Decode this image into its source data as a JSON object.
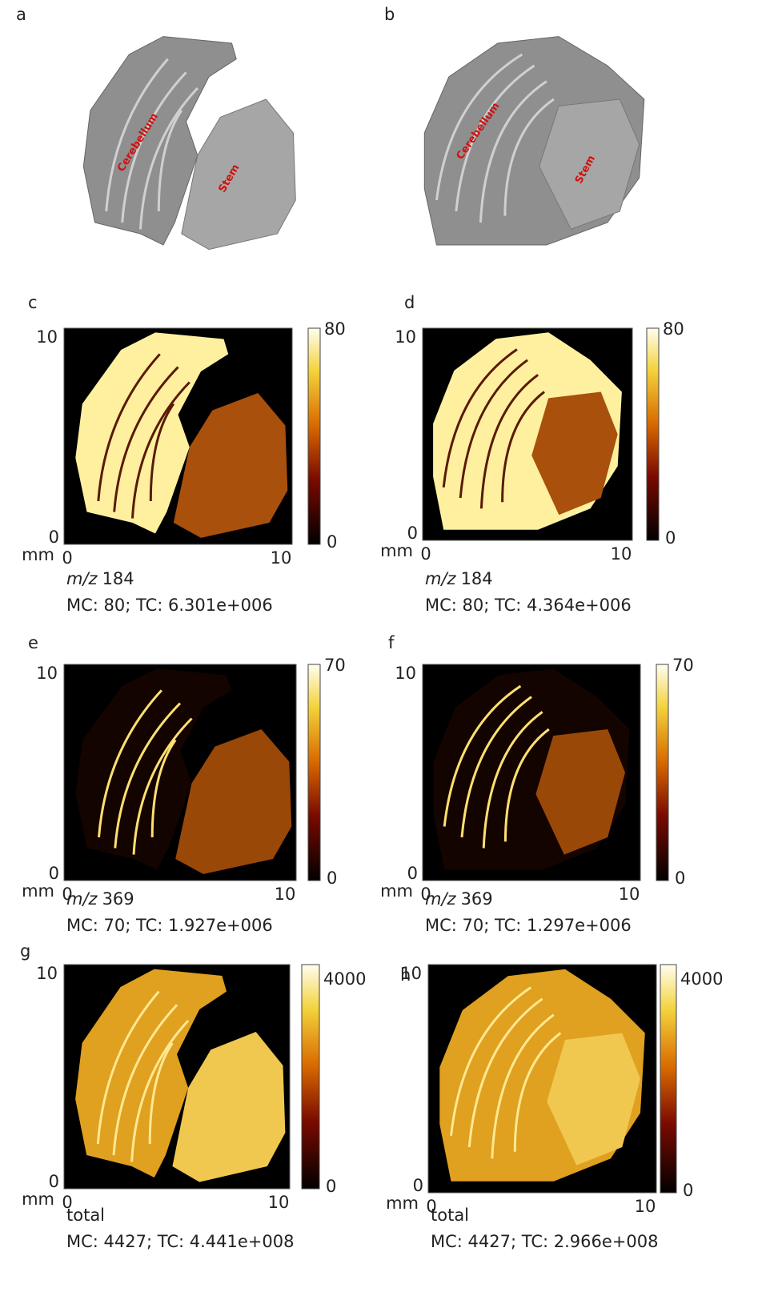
{
  "panels": [
    {
      "letter": "a",
      "labels": [
        "Cerebellum",
        "Stem"
      ]
    },
    {
      "letter": "b",
      "labels": [
        "Cerebellum",
        "Stem"
      ]
    },
    {
      "letter": "c",
      "y_ticks": [
        0,
        10
      ],
      "x_ticks": [
        0,
        10
      ],
      "unit": "mm",
      "colorbar": [
        0,
        80
      ],
      "label_italic": "m/z",
      "label": "184",
      "stats": "MC: 80; TC: 6.301e+006"
    },
    {
      "letter": "d",
      "y_ticks": [
        0,
        10
      ],
      "x_ticks": [
        0,
        10
      ],
      "unit": "mm",
      "colorbar": [
        0,
        80
      ],
      "label_italic": "m/z",
      "label": "184",
      "stats": "MC: 80; TC: 4.364e+006"
    },
    {
      "letter": "e",
      "y_ticks": [
        0,
        10
      ],
      "x_ticks": [
        0,
        10
      ],
      "unit": "mm",
      "colorbar": [
        0,
        70
      ],
      "label_italic": "m/z",
      "label": "369",
      "stats": "MC: 70; TC: 1.927e+006"
    },
    {
      "letter": "f",
      "y_ticks": [
        0,
        10
      ],
      "x_ticks": [
        0,
        10
      ],
      "unit": "mm",
      "colorbar": [
        0,
        70
      ],
      "label_italic": "m/z",
      "label": "369",
      "stats": "MC: 70; TC: 1.297e+006"
    },
    {
      "letter": "g",
      "y_ticks": [
        0,
        10
      ],
      "x_ticks": [
        0,
        10
      ],
      "unit": "mm",
      "colorbar": [
        0,
        4000
      ],
      "label": "total",
      "stats": "MC: 4427; TC: 4.441e+008"
    },
    {
      "letter": "h",
      "y_ticks": [
        0,
        10
      ],
      "x_ticks": [
        0,
        10
      ],
      "unit": "mm",
      "colorbar": [
        0,
        4000
      ],
      "label": "total",
      "stats": "MC: 4427; TC: 2.966e+008"
    }
  ]
}
